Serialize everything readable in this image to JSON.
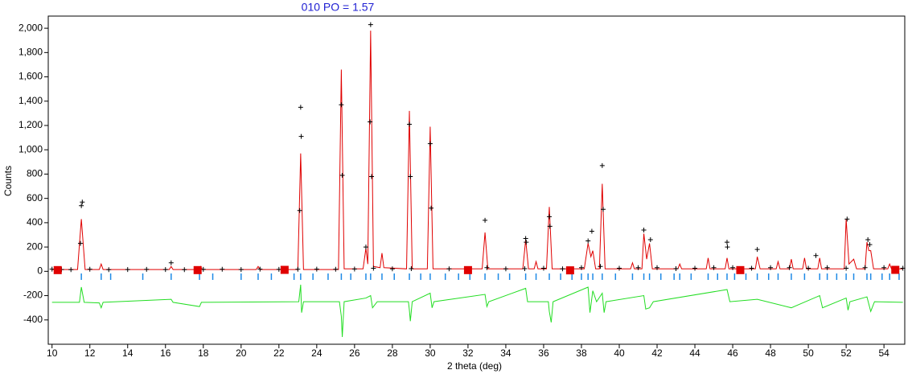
{
  "chart_data": {
    "type": "line",
    "title": "010 PO = 1.57",
    "x_label": "2 theta (deg)",
    "y_label": "Counts",
    "xlim": [
      9.8,
      55.1
    ],
    "ylim": [
      -600,
      2100
    ],
    "xticks": [
      10,
      12,
      14,
      16,
      18,
      20,
      22,
      24,
      26,
      28,
      30,
      32,
      34,
      36,
      38,
      40,
      42,
      44,
      46,
      48,
      50,
      52,
      54
    ],
    "yticks": [
      -400,
      -200,
      0,
      200,
      400,
      600,
      800,
      {
        "value": 1000,
        "label": "1,000"
      },
      {
        "value": 1200,
        "label": "1,200"
      },
      {
        "value": 1400,
        "label": "1,400"
      },
      {
        "value": 1600,
        "label": "1,600"
      },
      {
        "value": 1800,
        "label": "1,800"
      },
      {
        "value": 2000,
        "label": "2,000"
      }
    ],
    "series": [
      {
        "style": "line",
        "color": "#e00000",
        "x": [
          10.0,
          11.35,
          11.55,
          11.75,
          12.5,
          12.6,
          12.7,
          16.2,
          16.3,
          16.4,
          17.75,
          17.85,
          17.95,
          20.8,
          20.9,
          21.0,
          23.0,
          23.15,
          23.3,
          25.15,
          25.3,
          25.45,
          26.45,
          26.6,
          26.7,
          26.85,
          27.0,
          27.35,
          27.45,
          27.55,
          28.75,
          28.9,
          29.05,
          29.85,
          30.0,
          30.15,
          32.75,
          32.9,
          33.05,
          34.9,
          35.05,
          35.2,
          35.5,
          35.6,
          35.7,
          36.15,
          36.3,
          36.45,
          38.15,
          38.35,
          38.5,
          38.6,
          38.75,
          38.95,
          39.1,
          39.25,
          40.6,
          40.7,
          40.8,
          41.2,
          41.3,
          41.45,
          41.6,
          41.75,
          43.1,
          43.2,
          43.3,
          44.6,
          44.7,
          44.8,
          45.6,
          45.7,
          45.8,
          47.2,
          47.3,
          47.45,
          48.3,
          48.4,
          48.5,
          49.0,
          49.1,
          49.2,
          49.7,
          49.8,
          49.9,
          50.5,
          50.6,
          50.7,
          51.9,
          52.0,
          52.15,
          52.4,
          52.55,
          53.0,
          53.1,
          53.2,
          53.3,
          53.45,
          54.2,
          54.3,
          54.4,
          55.0
        ],
        "values": [
          15,
          15,
          430,
          15,
          15,
          60,
          15,
          15,
          40,
          15,
          15,
          40,
          15,
          15,
          40,
          15,
          15,
          970,
          15,
          15,
          1660,
          20,
          20,
          190,
          60,
          1980,
          40,
          30,
          150,
          30,
          20,
          1320,
          20,
          20,
          1190,
          20,
          20,
          320,
          20,
          20,
          260,
          20,
          20,
          80,
          20,
          20,
          530,
          20,
          20,
          230,
          120,
          170,
          20,
          20,
          720,
          20,
          20,
          70,
          20,
          20,
          310,
          100,
          230,
          20,
          20,
          60,
          20,
          20,
          110,
          20,
          20,
          110,
          20,
          20,
          120,
          20,
          20,
          80,
          20,
          20,
          100,
          20,
          20,
          110,
          20,
          20,
          110,
          20,
          20,
          430,
          60,
          100,
          20,
          20,
          240,
          170,
          170,
          20,
          20,
          60,
          20,
          20
        ]
      },
      {
        "style": "plus",
        "color": "#000000",
        "x": [
          10,
          10.5,
          11,
          11.5,
          11.55,
          11.6,
          12,
          13,
          14,
          15,
          16,
          16.3,
          17,
          18,
          19,
          20,
          21,
          22,
          23,
          23.1,
          23.15,
          23.18,
          24,
          25,
          25.3,
          25.35,
          26,
          26.6,
          26.82,
          26.85,
          26.9,
          27,
          28,
          28.9,
          28.95,
          29,
          30,
          30.05,
          31,
          32,
          32.9,
          33,
          34,
          35,
          35.05,
          35.08,
          36,
          36.3,
          36.33,
          37,
          38,
          38.35,
          38.55,
          39,
          39.1,
          39.15,
          40,
          41,
          41.3,
          41.65,
          42,
          43,
          44,
          45,
          45.7,
          45.72,
          46,
          47,
          47.3,
          48,
          49,
          50,
          50.4,
          51,
          52,
          52.05,
          53,
          53.15,
          53.25,
          54,
          55
        ],
        "values": [
          18,
          15,
          14,
          230,
          540,
          570,
          17,
          14,
          15,
          16,
          15,
          70,
          14,
          16,
          17,
          15,
          18,
          16,
          17,
          500,
          1350,
          1110,
          18,
          17,
          1370,
          790,
          19,
          200,
          1230,
          2030,
          780,
          25,
          20,
          1210,
          780,
          22,
          1050,
          520,
          20,
          22,
          420,
          30,
          20,
          22,
          270,
          240,
          25,
          450,
          370,
          20,
          30,
          250,
          330,
          40,
          870,
          510,
          25,
          30,
          340,
          260,
          30,
          22,
          25,
          30,
          240,
          200,
          30,
          25,
          180,
          30,
          30,
          25,
          130,
          30,
          25,
          430,
          30,
          260,
          220,
          30,
          25
        ]
      },
      {
        "style": "line",
        "color": "#22dd22",
        "x": [
          10,
          11.45,
          11.55,
          11.7,
          12.5,
          12.6,
          12.7,
          16.3,
          16.4,
          17.8,
          17.9,
          23.05,
          23.15,
          23.2,
          23.3,
          25.2,
          25.3,
          25.35,
          25.45,
          26.6,
          26.85,
          26.95,
          27.2,
          28.85,
          28.9,
          28.95,
          29.05,
          30.0,
          30.1,
          30.2,
          32.9,
          33.0,
          33.1,
          35.05,
          35.15,
          36.25,
          36.3,
          36.4,
          36.5,
          38.35,
          38.45,
          38.6,
          38.8,
          39.1,
          39.2,
          39.3,
          41.3,
          41.4,
          41.6,
          41.8,
          45.7,
          45.85,
          47.3,
          49.1,
          50.6,
          50.75,
          52.0,
          52.1,
          52.2,
          53.1,
          53.3,
          53.5,
          55
        ],
        "values": [
          -255,
          -255,
          -130,
          -255,
          -260,
          -300,
          -255,
          -230,
          -255,
          -290,
          -255,
          -250,
          -110,
          -340,
          -250,
          -250,
          -370,
          -540,
          -250,
          -220,
          -200,
          -300,
          -250,
          -250,
          -320,
          -410,
          -250,
          -180,
          -300,
          -250,
          -190,
          -290,
          -250,
          -140,
          -250,
          -250,
          -330,
          -420,
          -250,
          -130,
          -340,
          -160,
          -250,
          -180,
          -340,
          -250,
          -200,
          -310,
          -300,
          -250,
          -150,
          -250,
          -230,
          -300,
          -200,
          -300,
          -220,
          -320,
          -250,
          -210,
          -330,
          -250,
          -255
        ]
      },
      {
        "style": "square",
        "color": "#e00000",
        "x": [
          10.3,
          17.7,
          22.3,
          32.0,
          37.4,
          46.4,
          54.6
        ],
        "values": [
          10,
          10,
          12,
          10,
          8,
          10,
          12
        ]
      },
      {
        "style": "ticks",
        "color": "#1e8ae6",
        "x": [
          11.55,
          12.6,
          13.1,
          14.8,
          16.3,
          17.8,
          18.5,
          20.0,
          20.9,
          21.6,
          22.8,
          23.15,
          23.8,
          24.6,
          25.3,
          25.8,
          26.6,
          26.85,
          27.45,
          28.1,
          28.9,
          29.5,
          30.0,
          30.8,
          31.5,
          32.1,
          32.9,
          33.6,
          34.2,
          35.05,
          35.6,
          36.3,
          36.9,
          37.5,
          38.0,
          38.35,
          38.6,
          39.1,
          39.8,
          40.7,
          41.3,
          41.6,
          42.2,
          42.9,
          43.2,
          43.8,
          44.7,
          45.2,
          45.7,
          46.1,
          46.7,
          47.3,
          47.9,
          48.4,
          49.1,
          49.8,
          50.6,
          51.0,
          51.5,
          52.0,
          52.4,
          53.1,
          53.3,
          53.9,
          54.3,
          54.8
        ]
      }
    ]
  }
}
